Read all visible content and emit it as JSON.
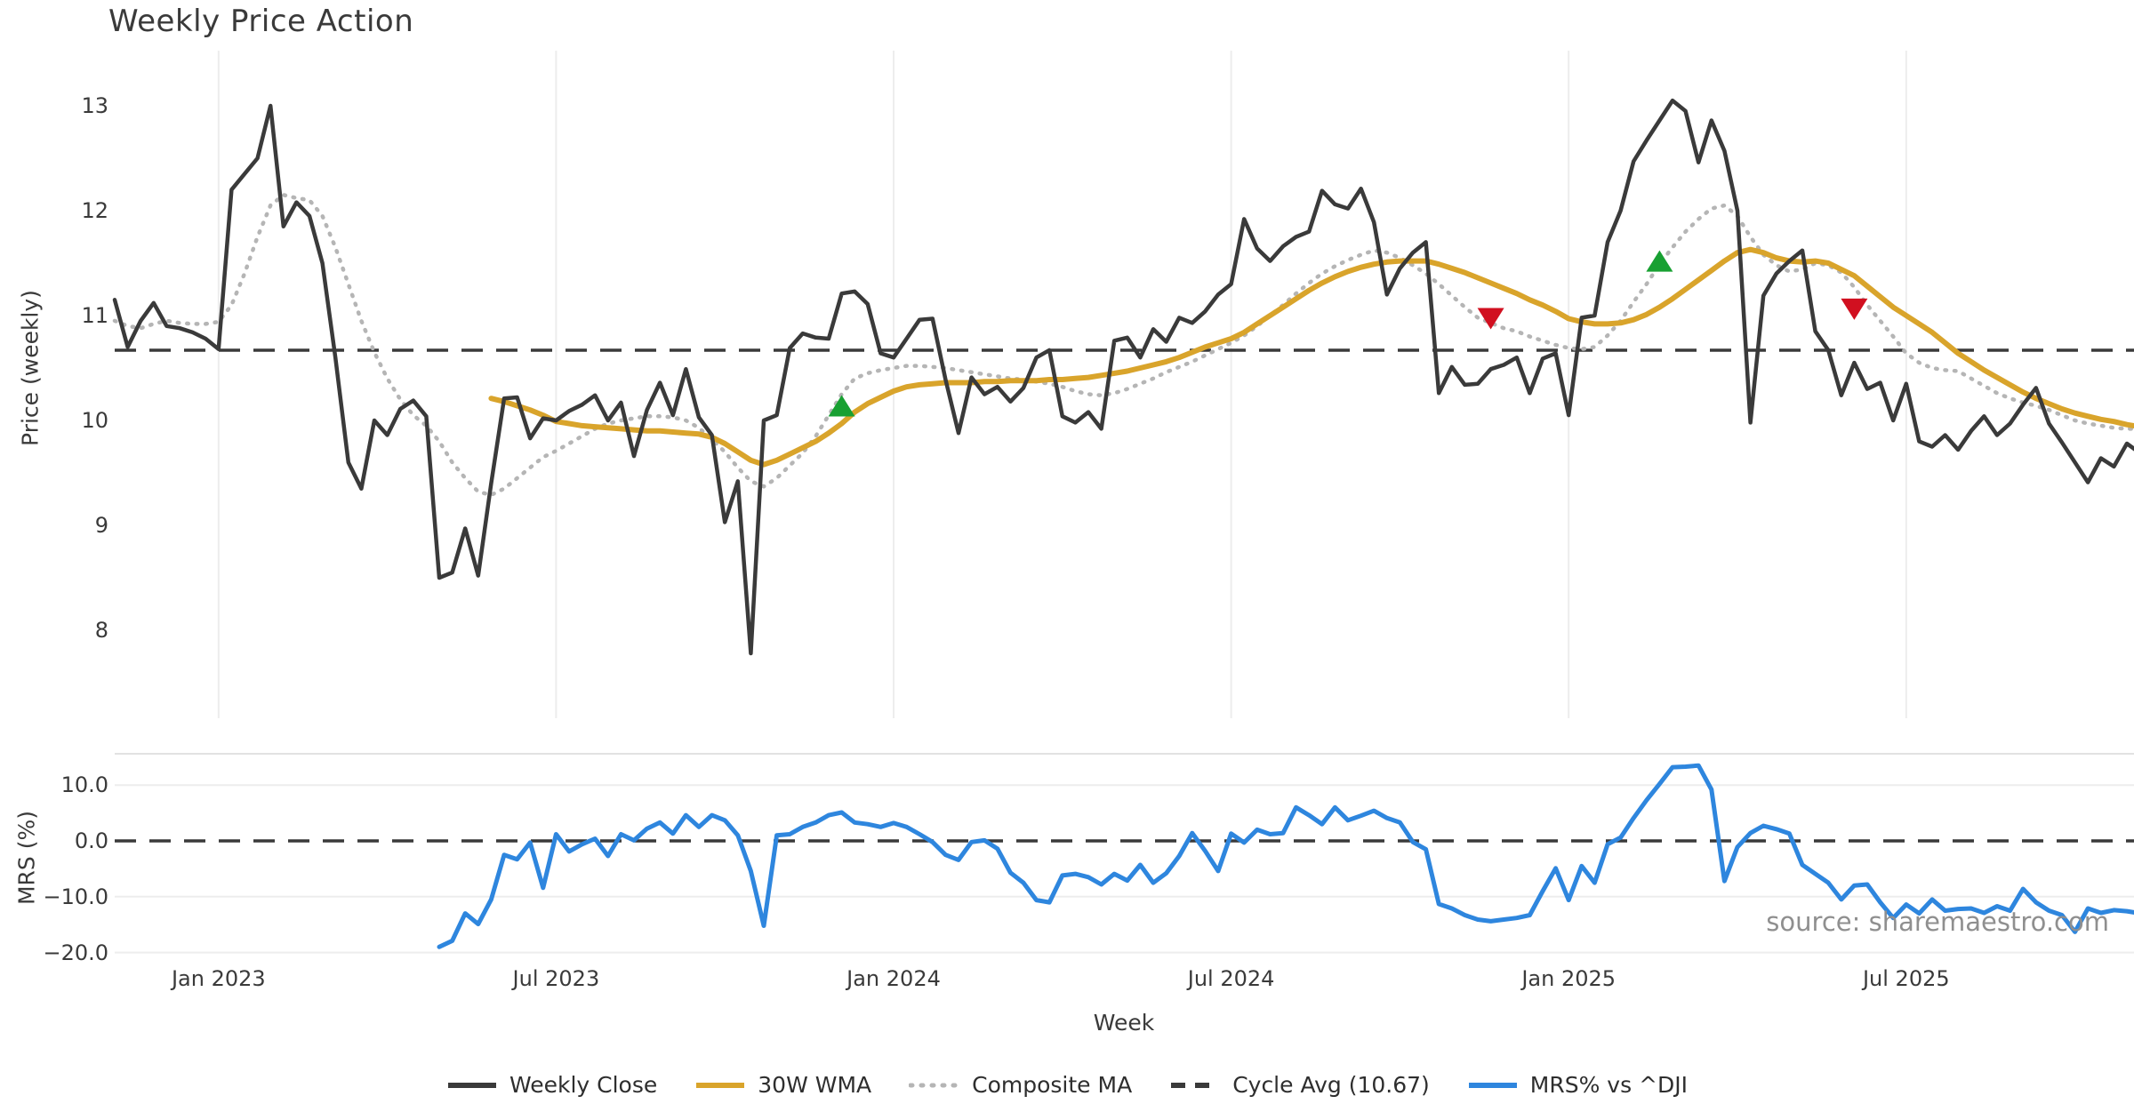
{
  "title": "Weekly Price Action",
  "source_note": "source: sharemaestro.com",
  "colors": {
    "close": "#3a3a3a",
    "wma": "#d9a42b",
    "composite": "#b5b5b5",
    "cycle_avg": "#3a3a3a",
    "mrs": "#2e86de",
    "buy_marker": "#18a032",
    "sell_marker": "#d11020",
    "grid": "#ededed",
    "panel_border": "#e2e2e2",
    "text": "#3a3a3a",
    "source_text": "#8f8f8f"
  },
  "legend": [
    {
      "label": "Weekly Close",
      "style": "solid",
      "color": "#3a3a3a"
    },
    {
      "label": "30W WMA",
      "style": "solid",
      "color": "#d9a42b"
    },
    {
      "label": "Composite MA",
      "style": "dotted",
      "color": "#b5b5b5"
    },
    {
      "label": "Cycle Avg (10.67)",
      "style": "dashed",
      "color": "#3a3a3a"
    },
    {
      "label": "MRS% vs ^DJI",
      "style": "solid",
      "color": "#2e86de"
    }
  ],
  "chart_data": [
    {
      "type": "line",
      "panel": "price",
      "title": "Weekly Price Action",
      "ylabel": "Price (weekly)",
      "xlabel": "Week",
      "ylim": [
        7.7,
        13.5
      ],
      "yticks": [
        13,
        12,
        11,
        10,
        9,
        8
      ],
      "xticks": [
        "Jan 2023",
        "Jul 2023",
        "Jan 2024",
        "Jul 2024",
        "Jan 2025",
        "Jul 2025"
      ],
      "xtick_week_index": [
        8,
        34,
        60,
        86,
        112,
        138
      ],
      "start_week": "2022-11-07",
      "frequency": "weekly",
      "weeks": 157,
      "grid": "vertical-only",
      "cycle_avg": 10.67,
      "series": [
        {
          "name": "Weekly Close",
          "values": [
            11.15,
            10.7,
            10.95,
            11.12,
            10.9,
            10.88,
            10.84,
            10.78,
            10.68,
            12.2,
            12.35,
            12.5,
            13.0,
            11.85,
            12.08,
            11.95,
            11.5,
            10.6,
            9.6,
            9.35,
            10.0,
            9.86,
            10.11,
            10.19,
            10.04,
            8.5,
            8.55,
            8.97,
            8.52,
            9.4,
            10.21,
            10.22,
            9.83,
            10.02,
            10.0,
            10.09,
            10.15,
            10.24,
            10.0,
            10.17,
            9.66,
            10.1,
            10.36,
            10.05,
            10.49,
            10.03,
            9.86,
            9.03,
            9.42,
            7.78,
            10.0,
            10.05,
            10.69,
            10.83,
            10.79,
            10.78,
            11.21,
            11.23,
            11.11,
            10.64,
            10.6,
            10.78,
            10.96,
            10.97,
            10.39,
            9.88,
            10.41,
            10.25,
            10.32,
            10.18,
            10.31,
            10.6,
            10.67,
            10.04,
            9.98,
            10.08,
            9.92,
            10.76,
            10.79,
            10.6,
            10.87,
            10.75,
            10.98,
            10.93,
            11.04,
            11.2,
            11.3,
            11.92,
            11.64,
            11.52,
            11.66,
            11.75,
            11.8,
            12.19,
            12.06,
            12.02,
            12.21,
            11.89,
            11.2,
            11.45,
            11.6,
            11.7,
            10.26,
            10.51,
            10.34,
            10.35,
            10.49,
            10.53,
            10.6,
            10.26,
            10.59,
            10.64,
            10.05,
            10.98,
            11.0,
            11.7,
            12.0,
            12.47,
            12.67,
            12.86,
            13.05,
            12.95,
            12.46,
            12.86,
            12.57,
            12.0,
            9.98,
            11.19,
            11.4,
            11.52,
            11.62,
            10.85,
            10.67,
            10.24,
            10.55,
            10.3,
            10.36,
            10.0,
            10.35,
            9.8,
            9.75,
            9.86,
            9.72,
            9.9,
            10.04,
            9.86,
            9.97,
            10.15,
            10.31,
            9.97,
            9.79,
            9.6,
            9.41,
            9.64,
            9.56,
            9.78,
            9.69
          ]
        },
        {
          "name": "30W WMA",
          "values": [
            null,
            null,
            null,
            null,
            null,
            null,
            null,
            null,
            null,
            null,
            null,
            null,
            null,
            null,
            null,
            null,
            null,
            null,
            null,
            null,
            null,
            null,
            null,
            null,
            null,
            null,
            null,
            null,
            null,
            10.21,
            10.18,
            10.14,
            10.1,
            10.05,
            9.99,
            9.97,
            9.95,
            9.94,
            9.93,
            9.92,
            9.91,
            9.9,
            9.9,
            9.89,
            9.88,
            9.87,
            9.84,
            9.78,
            9.7,
            9.62,
            9.58,
            9.62,
            9.68,
            9.74,
            9.8,
            9.88,
            9.97,
            10.08,
            10.16,
            10.22,
            10.28,
            10.32,
            10.34,
            10.35,
            10.36,
            10.36,
            10.36,
            10.37,
            10.37,
            10.38,
            10.38,
            10.38,
            10.39,
            10.39,
            10.4,
            10.41,
            10.43,
            10.45,
            10.47,
            10.5,
            10.53,
            10.56,
            10.6,
            10.65,
            10.7,
            10.74,
            10.78,
            10.84,
            10.92,
            11.0,
            11.08,
            11.16,
            11.24,
            11.31,
            11.37,
            11.42,
            11.46,
            11.49,
            11.51,
            11.52,
            11.52,
            11.52,
            11.49,
            11.45,
            11.41,
            11.36,
            11.31,
            11.26,
            11.21,
            11.15,
            11.1,
            11.04,
            10.97,
            10.94,
            10.92,
            10.92,
            10.93,
            10.96,
            11.01,
            11.08,
            11.16,
            11.25,
            11.34,
            11.43,
            11.52,
            11.6,
            11.63,
            11.6,
            11.55,
            11.52,
            11.51,
            11.52,
            11.5,
            11.44,
            11.38,
            11.28,
            11.18,
            11.08,
            11.0,
            10.92,
            10.84,
            10.74,
            10.64,
            10.56,
            10.48,
            10.41,
            10.34,
            10.27,
            10.21,
            10.16,
            10.11,
            10.07,
            10.04,
            10.01,
            9.99,
            9.96,
            9.94
          ]
        },
        {
          "name": "Composite MA",
          "values": [
            10.95,
            10.9,
            10.88,
            10.92,
            10.95,
            10.93,
            10.92,
            10.92,
            10.94,
            11.1,
            11.4,
            11.75,
            12.05,
            12.15,
            12.12,
            12.1,
            11.95,
            11.65,
            11.3,
            10.95,
            10.65,
            10.4,
            10.2,
            10.05,
            9.95,
            9.8,
            9.6,
            9.45,
            9.32,
            9.29,
            9.35,
            9.45,
            9.55,
            9.65,
            9.71,
            9.78,
            9.85,
            9.92,
            9.97,
            10.0,
            10.02,
            10.04,
            10.04,
            10.03,
            10.0,
            9.93,
            9.82,
            9.7,
            9.55,
            9.42,
            9.37,
            9.45,
            9.57,
            9.69,
            9.85,
            10.05,
            10.25,
            10.4,
            10.45,
            10.48,
            10.5,
            10.52,
            10.52,
            10.51,
            10.5,
            10.48,
            10.46,
            10.44,
            10.42,
            10.4,
            10.39,
            10.37,
            10.35,
            10.32,
            10.28,
            10.25,
            10.24,
            10.26,
            10.3,
            10.35,
            10.4,
            10.46,
            10.51,
            10.56,
            10.62,
            10.68,
            10.74,
            10.81,
            10.9,
            11.0,
            11.1,
            11.21,
            11.31,
            11.4,
            11.47,
            11.53,
            11.58,
            11.62,
            11.6,
            11.55,
            11.48,
            11.4,
            11.3,
            11.19,
            11.08,
            10.98,
            10.93,
            10.88,
            10.85,
            10.8,
            10.76,
            10.72,
            10.69,
            10.68,
            10.7,
            10.81,
            10.95,
            11.13,
            11.3,
            11.49,
            11.65,
            11.8,
            11.92,
            12.02,
            12.05,
            11.95,
            11.75,
            11.58,
            11.48,
            11.42,
            11.44,
            11.5,
            11.48,
            11.41,
            11.27,
            11.1,
            10.95,
            10.8,
            10.64,
            10.55,
            10.5,
            10.48,
            10.47,
            10.4,
            10.33,
            10.26,
            10.21,
            10.17,
            10.14,
            10.1,
            10.05,
            10.0,
            9.97,
            9.95,
            9.93,
            9.92,
            9.92
          ]
        }
      ],
      "signals": [
        {
          "week": 56,
          "price": 10.14,
          "type": "buy"
        },
        {
          "week": 106,
          "price": 10.97,
          "type": "sell"
        },
        {
          "week": 119,
          "price": 11.52,
          "type": "buy"
        },
        {
          "week": 134,
          "price": 11.06,
          "type": "sell"
        }
      ]
    },
    {
      "type": "line",
      "panel": "mrs",
      "ylabel": "MRS (%)",
      "ylim": [
        -21.5,
        15.5
      ],
      "yticks": [
        10.0,
        0.0,
        -10.0,
        -20.0
      ],
      "ytick_labels": [
        "10.0",
        "0.0",
        "−10.0",
        "−20.0"
      ],
      "zero_line": 0,
      "grid": "horizontal-only",
      "series": [
        {
          "name": "MRS% vs ^DJI",
          "values": [
            null,
            null,
            null,
            null,
            null,
            null,
            null,
            null,
            null,
            null,
            null,
            null,
            null,
            null,
            null,
            null,
            null,
            null,
            null,
            null,
            null,
            null,
            null,
            null,
            null,
            -19.0,
            -17.9,
            -13.0,
            -14.9,
            -10.5,
            -2.5,
            -3.3,
            -0.3,
            -8.4,
            1.2,
            -1.9,
            -0.6,
            0.4,
            -2.7,
            1.2,
            0.1,
            2.2,
            3.3,
            1.3,
            4.6,
            2.5,
            4.6,
            3.7,
            1.0,
            -5.4,
            -15.2,
            1.0,
            1.2,
            2.5,
            3.3,
            4.6,
            5.1,
            3.3,
            3.0,
            2.5,
            3.2,
            2.5,
            1.2,
            -0.2,
            -2.5,
            -3.4,
            -0.2,
            0.1,
            -1.4,
            -5.7,
            -7.5,
            -10.6,
            -11.0,
            -6.2,
            -5.9,
            -6.5,
            -7.8,
            -5.9,
            -7.1,
            -4.3,
            -7.5,
            -5.8,
            -2.7,
            1.4,
            -1.8,
            -5.4,
            1.3,
            -0.3,
            2.0,
            1.2,
            1.4,
            6.0,
            4.6,
            3.0,
            6.0,
            3.7,
            4.5,
            5.4,
            4.1,
            3.3,
            -0.2,
            -1.5,
            -11.3,
            -12.1,
            -13.3,
            -14.1,
            -14.4,
            -14.1,
            -13.8,
            -13.3,
            -9.0,
            -4.9,
            -10.6,
            -4.5,
            -7.5,
            -0.6,
            0.6,
            4.1,
            7.3,
            10.2,
            13.2,
            13.3,
            13.5,
            9.2,
            -7.2,
            -1.1,
            1.4,
            2.7,
            2.1,
            1.3,
            -4.3,
            -5.9,
            -7.5,
            -10.5,
            -8.0,
            -7.8,
            -11.0,
            -13.8,
            -11.4,
            -13.0,
            -10.5,
            -12.5,
            -12.2,
            -12.1,
            -12.9,
            -11.7,
            -12.5,
            -8.6,
            -11.0,
            -12.5,
            -13.3,
            -16.3,
            -12.1,
            -12.9,
            -12.4,
            -12.6,
            -13.0
          ]
        }
      ]
    }
  ],
  "axis": {
    "price_ylabel": "Price (weekly)",
    "mrs_ylabel": "MRS (%)",
    "xlabel": "Week"
  }
}
